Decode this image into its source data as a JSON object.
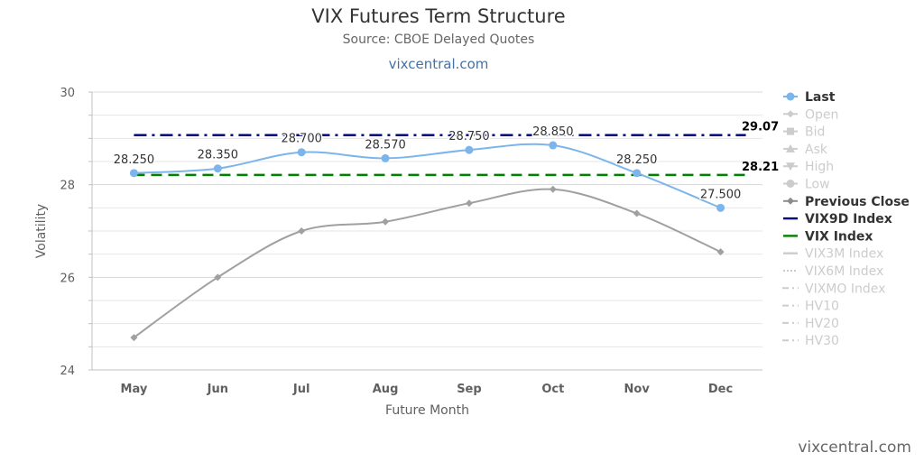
{
  "header": {
    "title": "VIX Futures Term Structure",
    "subtitle": "Source: CBOE Delayed Quotes",
    "link": "vixcentral.com"
  },
  "footer": {
    "credit": "vixcentral.com"
  },
  "chart_data": {
    "type": "line",
    "title": "VIX Futures Term Structure",
    "subtitle": "Source: CBOE Delayed Quotes",
    "xlabel": "Future Month",
    "ylabel": "Volatility",
    "ylim": [
      24,
      30
    ],
    "yticks": [
      24,
      26,
      28,
      30
    ],
    "grid": true,
    "legend_position": "right",
    "categories": [
      "May",
      "Jun",
      "Jul",
      "Aug",
      "Sep",
      "Oct",
      "Nov",
      "Dec"
    ],
    "series": [
      {
        "name": "Last",
        "values": [
          28.25,
          28.35,
          28.7,
          28.57,
          28.75,
          28.85,
          28.25,
          27.5
        ],
        "labels": [
          "28.250",
          "28.350",
          "28.700",
          "28.570",
          "28.750",
          "28.850",
          "28.250",
          "27.500"
        ],
        "color": "#7cb5ec",
        "marker": "circle",
        "active": true
      },
      {
        "name": "Previous Close",
        "values": [
          24.7,
          26.0,
          27.0,
          27.2,
          27.6,
          27.9,
          27.38,
          26.55
        ],
        "color": "#a0a0a0",
        "marker": "diamond",
        "active": true
      }
    ],
    "reference_lines": [
      {
        "name": "VIX9D Index",
        "value": 29.07,
        "label": "29.07",
        "color": "#000080",
        "dash": "dashdot"
      },
      {
        "name": "VIX Index",
        "value": 28.21,
        "label": "28.21",
        "color": "#008000",
        "dash": "dash"
      }
    ],
    "legend": [
      {
        "name": "Last",
        "color": "#7cb5ec",
        "symbol": "circle",
        "active": true
      },
      {
        "name": "Open",
        "color": "#cccccc",
        "symbol": "diamond",
        "active": false
      },
      {
        "name": "Bid",
        "color": "#cccccc",
        "symbol": "square",
        "active": false
      },
      {
        "name": "Ask",
        "color": "#cccccc",
        "symbol": "triangle",
        "active": false
      },
      {
        "name": "High",
        "color": "#cccccc",
        "symbol": "triangle-down",
        "active": false
      },
      {
        "name": "Low",
        "color": "#cccccc",
        "symbol": "circle",
        "active": false
      },
      {
        "name": "Previous Close",
        "color": "#8c8c8c",
        "symbol": "diamond",
        "active": true
      },
      {
        "name": "VIX9D Index",
        "color": "#000080",
        "symbol": "line",
        "active": true
      },
      {
        "name": "VIX Index",
        "color": "#008000",
        "symbol": "line",
        "active": true
      },
      {
        "name": "VIX3M Index",
        "color": "#cccccc",
        "symbol": "line",
        "active": false
      },
      {
        "name": "VIX6M Index",
        "color": "#cccccc",
        "symbol": "dotline",
        "active": false
      },
      {
        "name": "VIXMO Index",
        "color": "#cccccc",
        "symbol": "dashline",
        "active": false
      },
      {
        "name": "HV10",
        "color": "#cccccc",
        "symbol": "dashline",
        "active": false
      },
      {
        "name": "HV20",
        "color": "#cccccc",
        "symbol": "dashline",
        "active": false
      },
      {
        "name": "HV30",
        "color": "#cccccc",
        "symbol": "dashline",
        "active": false
      }
    ]
  }
}
